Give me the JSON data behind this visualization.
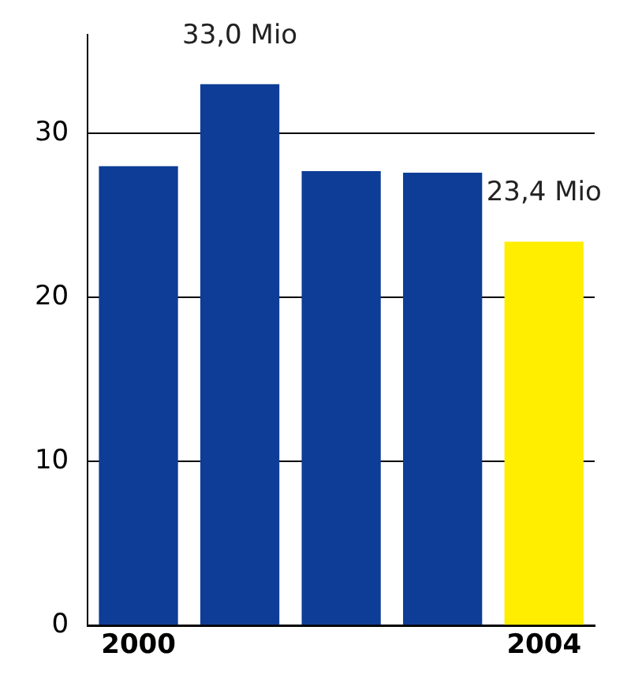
{
  "chart_data": {
    "type": "bar",
    "categories": [
      "2000",
      null,
      null,
      null,
      "2004"
    ],
    "values": [
      28.0,
      33.0,
      27.7,
      27.6,
      23.4
    ],
    "colors": [
      "#0d3d96",
      "#0d3d96",
      "#0d3d96",
      "#0d3d96",
      "#ffee00"
    ],
    "value_labels": [
      null,
      "33,0 Mio",
      null,
      null,
      "23,4 Mio"
    ],
    "ylim": [
      0,
      36
    ],
    "yticks": [
      0,
      10,
      20,
      30
    ],
    "grid": "y",
    "legend": false
  }
}
